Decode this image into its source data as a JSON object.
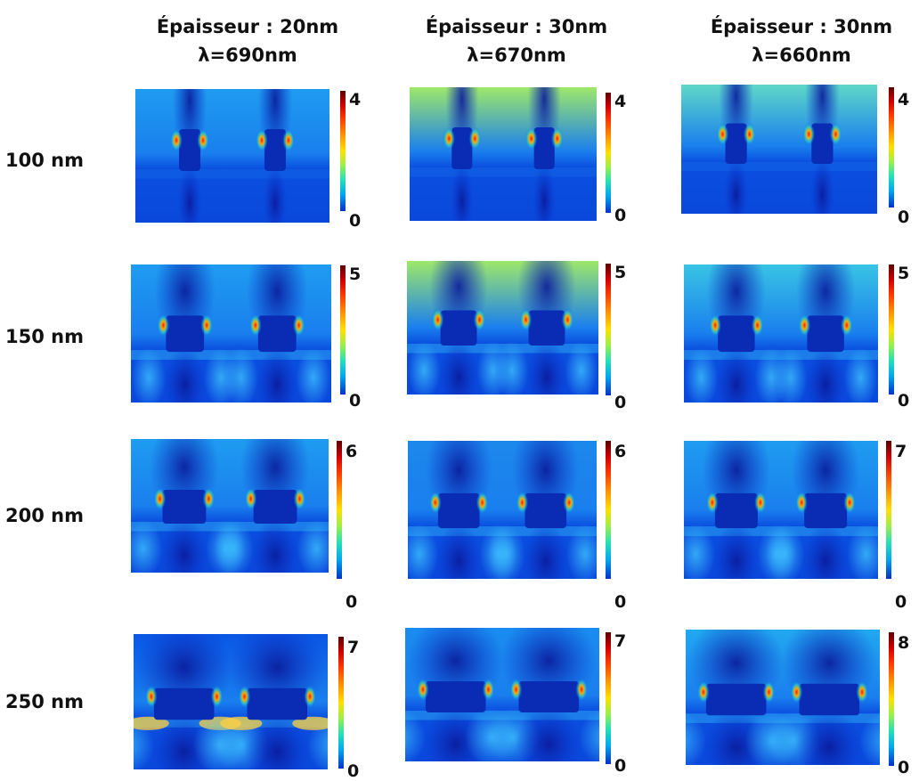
{
  "columns": [
    {
      "line1": "Épaisseur : 20nm",
      "line2": "λ=690nm"
    },
    {
      "line1": "Épaisseur : 30nm",
      "line2": "λ=670nm"
    },
    {
      "line1": "Épaisseur : 30nm",
      "line2": "λ=660nm"
    }
  ],
  "rows": [
    {
      "label": "100 nm",
      "scales": [
        {
          "max": "4",
          "min": "0"
        },
        {
          "max": "4",
          "min": "0"
        },
        {
          "max": "4",
          "min": "0"
        }
      ]
    },
    {
      "label": "150 nm",
      "scales": [
        {
          "max": "5",
          "min": "0"
        },
        {
          "max": "5",
          "min": "0"
        },
        {
          "max": "5",
          "min": "0"
        }
      ]
    },
    {
      "label": "200 nm",
      "scales": [
        {
          "max": "6",
          "min": "0"
        },
        {
          "max": "6",
          "min": "0"
        },
        {
          "max": "7",
          "min": "0"
        }
      ]
    },
    {
      "label": "250 nm",
      "scales": [
        {
          "max": "7",
          "min": "0"
        },
        {
          "max": "7",
          "min": "0"
        },
        {
          "max": "8",
          "min": "0"
        }
      ]
    }
  ],
  "colors": {
    "field_high": "#ff2000",
    "field_mid": "#ffe000",
    "field_low": "#0030c8",
    "field_background": "#0055e8"
  }
}
